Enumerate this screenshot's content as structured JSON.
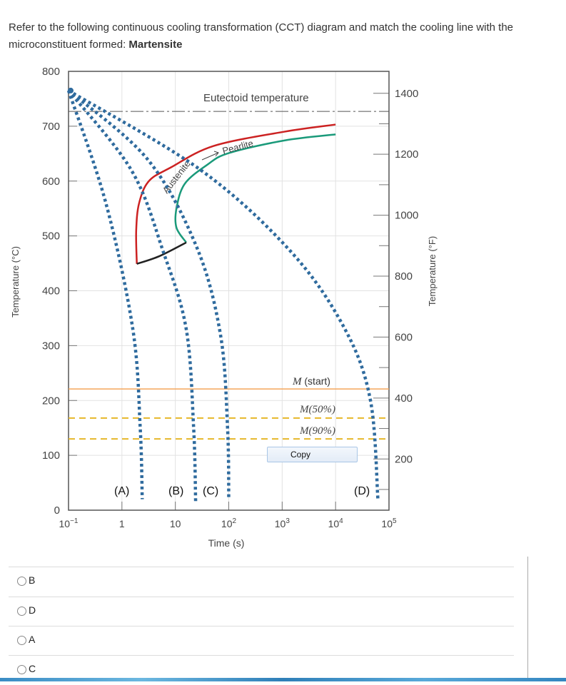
{
  "question": {
    "text": "Refer to the following continuous cooling transformation (CCT) diagram and match the cooling line with the microconstituent formed: ",
    "target": "Martensite"
  },
  "context_menu": {
    "copy_label": "Copy"
  },
  "options": [
    {
      "label": "B",
      "selected": false
    },
    {
      "label": "D",
      "selected": false
    },
    {
      "label": "A",
      "selected": false
    },
    {
      "label": "C",
      "selected": false
    }
  ],
  "chart_data": {
    "type": "line",
    "xlabel": "Time (s)",
    "ylabel": "Temperature (°C)",
    "ylabel_right": "Temperature (°F)",
    "x_scale": "log",
    "xlim": [
      0.1,
      100000
    ],
    "ylim": [
      0,
      800
    ],
    "x_ticks": [
      {
        "value": 0.1,
        "base": "10",
        "exp": "−1"
      },
      {
        "value": 1,
        "base": "1",
        "exp": ""
      },
      {
        "value": 10,
        "base": "10",
        "exp": ""
      },
      {
        "value": 100,
        "base": "10",
        "exp": "2"
      },
      {
        "value": 1000,
        "base": "10",
        "exp": "3"
      },
      {
        "value": 10000,
        "base": "10",
        "exp": "4"
      },
      {
        "value": 100000,
        "base": "10",
        "exp": "5"
      }
    ],
    "y_ticks": [
      "0",
      "100",
      "200",
      "300",
      "400",
      "500",
      "600",
      "700",
      "800"
    ],
    "y_right_ticks": [
      "200",
      "400",
      "600",
      "800",
      "1000",
      "1200",
      "1400"
    ],
    "grid": true,
    "annotations": {
      "eutectoid": "Eutectoid temperature",
      "austenite": "Austenite",
      "pearlite": "Pearlite",
      "m_start_italic": "M",
      "m_start": " (start)",
      "m50": "M(50%)",
      "m90": "M(90%)"
    },
    "eutectoid_temp": 727,
    "m_start_temp": 221,
    "m50_temp": 168,
    "m90_temp": 130,
    "series": [
      {
        "key": "pearlite-start",
        "color": "#cc2222",
        "points": [
          [
            1.9,
            449
          ],
          [
            1.85,
            510
          ],
          [
            2.1,
            560
          ],
          [
            3.2,
            600
          ],
          [
            8.3,
            625
          ],
          [
            52,
            664
          ],
          [
            1100,
            690
          ],
          [
            10000,
            703
          ]
        ]
      },
      {
        "key": "pearlite-finish",
        "color": "#1a9a7a",
        "points": [
          [
            16,
            488
          ],
          [
            10.5,
            515
          ],
          [
            10.5,
            550
          ],
          [
            15,
            595
          ],
          [
            40,
            630
          ],
          [
            100,
            651
          ],
          [
            1100,
            674
          ],
          [
            10000,
            685
          ]
        ]
      },
      {
        "key": "transformation-stop",
        "color": "#222222",
        "points": [
          [
            1.9,
            449
          ],
          [
            5,
            463
          ],
          [
            16,
            488
          ]
        ]
      }
    ],
    "cooling_curves": [
      {
        "label": "(A)",
        "color": "#2f6b9e",
        "points": [
          [
            0.1,
            765
          ],
          [
            0.5,
            560
          ],
          [
            1.6,
            330
          ],
          [
            2.2,
            150
          ],
          [
            2.4,
            20
          ]
        ]
      },
      {
        "label": "(B)",
        "color": "#2f6b9e",
        "points": [
          [
            0.1,
            765
          ],
          [
            1.5,
            620
          ],
          [
            6,
            470
          ],
          [
            16,
            330
          ],
          [
            22,
            150
          ],
          [
            24,
            15
          ]
        ]
      },
      {
        "label": "(C)",
        "color": "#2f6b9e",
        "points": [
          [
            0.1,
            765
          ],
          [
            3,
            640
          ],
          [
            25,
            480
          ],
          [
            70,
            320
          ],
          [
            95,
            150
          ],
          [
            100,
            20
          ]
        ]
      },
      {
        "label": "(D)",
        "color": "#2f6b9e",
        "points": [
          [
            0.1,
            765
          ],
          [
            30,
            620
          ],
          [
            1500,
            470
          ],
          [
            15000,
            330
          ],
          [
            45000,
            200
          ],
          [
            62000,
            20
          ]
        ]
      }
    ]
  }
}
